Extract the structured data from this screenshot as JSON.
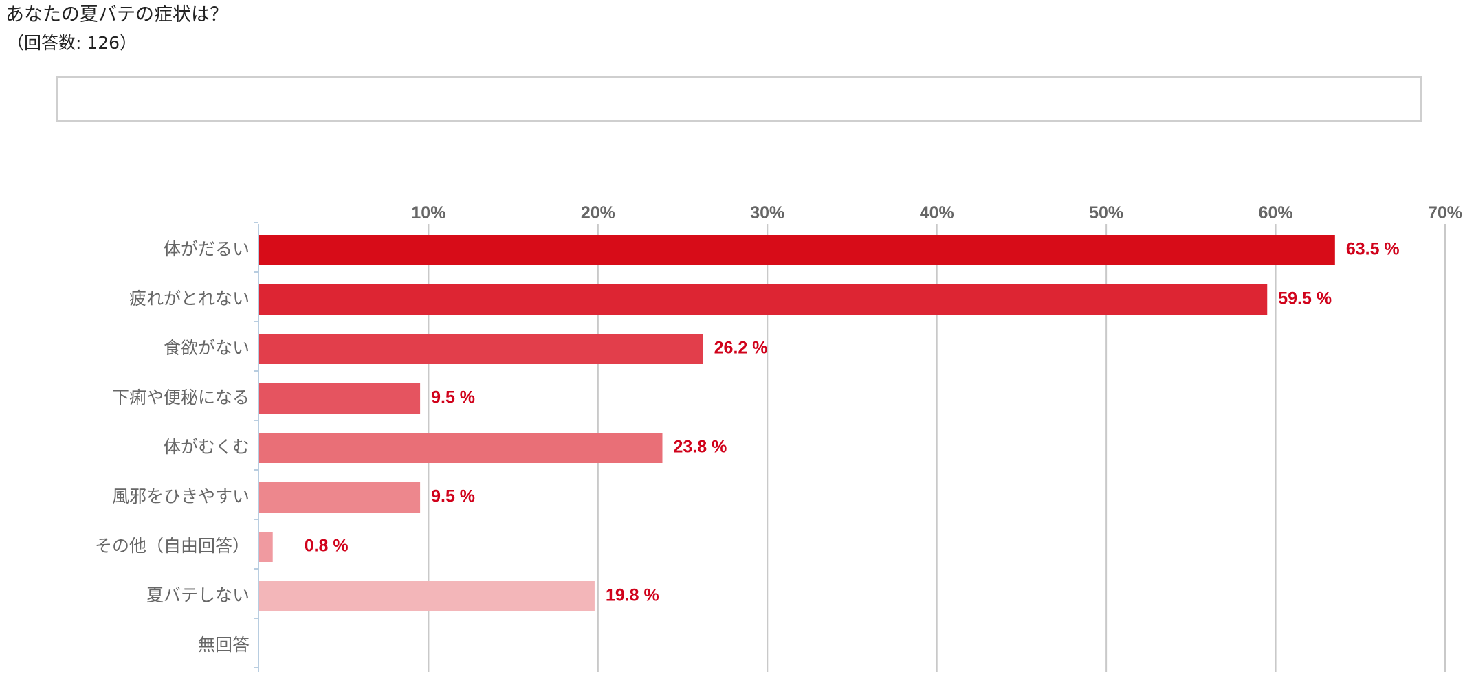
{
  "header": {
    "title": "あなたの夏バテの症状は？",
    "respondents": "（回答数: 126）"
  },
  "chart_data": {
    "type": "bar",
    "orientation": "horizontal",
    "title": "あなたの夏バテの症状は？",
    "categories": [
      "体がだるい",
      "疲れがとれない",
      "食欲がない",
      "下痢や便秘になる",
      "体がむくむ",
      "風邪をひきやすい",
      "その他（自由回答）",
      "夏バテしない",
      "無回答"
    ],
    "values": [
      63.5,
      59.5,
      26.2,
      9.5,
      23.8,
      9.5,
      0.8,
      19.8,
      null
    ],
    "value_labels": [
      "63.5 %",
      "59.5 %",
      "26.2 %",
      "9.5 %",
      "23.8 %",
      "9.5 %",
      "0.8 %",
      "19.8 %",
      ""
    ],
    "bar_colors": [
      "#d70c18",
      "#dd2533",
      "#e23e4b",
      "#e55460",
      "#e96f77",
      "#ed878d",
      "#f09aa0",
      "#f3b6b9",
      "#f6c9cb"
    ],
    "value_label_color": "#d0021b",
    "xlim": [
      0,
      70
    ],
    "x_ticks": [
      10,
      20,
      30,
      40,
      50,
      60,
      70
    ],
    "x_tick_labels": [
      "10%",
      "20%",
      "30%",
      "40%",
      "50%",
      "60%",
      "70%"
    ],
    "x_axis_position": "top",
    "grid": true,
    "legend": "none"
  }
}
